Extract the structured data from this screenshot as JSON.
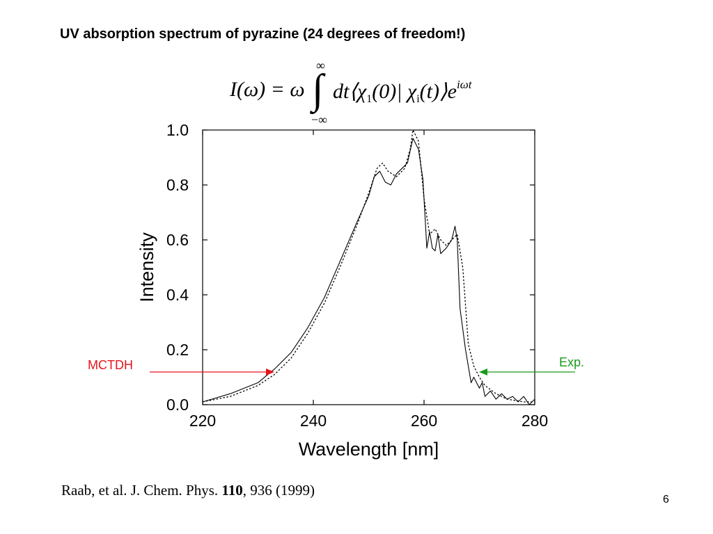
{
  "slide": {
    "title": "UV absorption spectrum of pyrazine (24 degrees of freedom!)",
    "page_number": "6"
  },
  "formula": {
    "lhs": "I(ω) = ω",
    "integral": "∫",
    "upper_limit": "∞",
    "lower_limit": "−∞",
    "body_1": "dt⟨χ",
    "sub_1": "1",
    "body_2": "(0)| χ",
    "sub_2": "i",
    "body_3": "(t)⟩e",
    "exponent": "iωt"
  },
  "citation": {
    "authors": "Raab, et al. J. Chem. Phys. ",
    "volume": "110",
    "pages": ", 936 (1999)"
  },
  "annotations": {
    "mctdh": {
      "label": "MCTDH",
      "color": "#e8141b"
    },
    "exp": {
      "label": "Exp.",
      "color": "#1a9a1a"
    }
  },
  "chart_data": {
    "type": "line",
    "xlabel": "Wavelength [nm]",
    "ylabel": "Intensity",
    "xlim": [
      220,
      280
    ],
    "ylim": [
      0,
      1.0
    ],
    "xticks": [
      220,
      240,
      260,
      280
    ],
    "yticks": [
      "0.0",
      "0.2",
      "0.4",
      "0.6",
      "0.8",
      "1.0"
    ],
    "grid": false,
    "series": [
      {
        "name": "MCTDH",
        "style": "dotted",
        "x": [
          220,
          225,
          230,
          233,
          236,
          239,
          242,
          245,
          248,
          250,
          251.5,
          252.5,
          253.5,
          255,
          256.5,
          257.5,
          258,
          259,
          260,
          261,
          262,
          263,
          264,
          265,
          266,
          267,
          268,
          269,
          270,
          271,
          273,
          275,
          278,
          280
        ],
        "y": [
          0.01,
          0.03,
          0.07,
          0.11,
          0.17,
          0.26,
          0.37,
          0.51,
          0.66,
          0.77,
          0.86,
          0.88,
          0.85,
          0.83,
          0.86,
          0.93,
          1.0,
          0.96,
          0.75,
          0.62,
          0.64,
          0.6,
          0.58,
          0.6,
          0.62,
          0.5,
          0.22,
          0.14,
          0.1,
          0.07,
          0.04,
          0.02,
          0.01,
          0.01
        ]
      },
      {
        "name": "Exp.",
        "style": "solid",
        "x": [
          220,
          225,
          230,
          233,
          236,
          239,
          242,
          245,
          248,
          250,
          251,
          252,
          253,
          254,
          255,
          256,
          257,
          258,
          259,
          259.8,
          260.5,
          261,
          261.5,
          262,
          262.5,
          263,
          264,
          265,
          265.6,
          266,
          266.5,
          267.5,
          268.5,
          269,
          270,
          270.5,
          271,
          272,
          273,
          274,
          275,
          276,
          277,
          278,
          279,
          280
        ],
        "y": [
          0.01,
          0.04,
          0.08,
          0.13,
          0.19,
          0.28,
          0.39,
          0.53,
          0.67,
          0.76,
          0.83,
          0.85,
          0.81,
          0.8,
          0.84,
          0.86,
          0.88,
          0.97,
          0.93,
          0.82,
          0.57,
          0.63,
          0.57,
          0.56,
          0.62,
          0.55,
          0.57,
          0.6,
          0.65,
          0.6,
          0.35,
          0.2,
          0.08,
          0.1,
          0.06,
          0.08,
          0.03,
          0.05,
          0.02,
          0.04,
          0.02,
          0.03,
          0.01,
          0.03,
          0.0,
          0.02
        ]
      }
    ]
  }
}
